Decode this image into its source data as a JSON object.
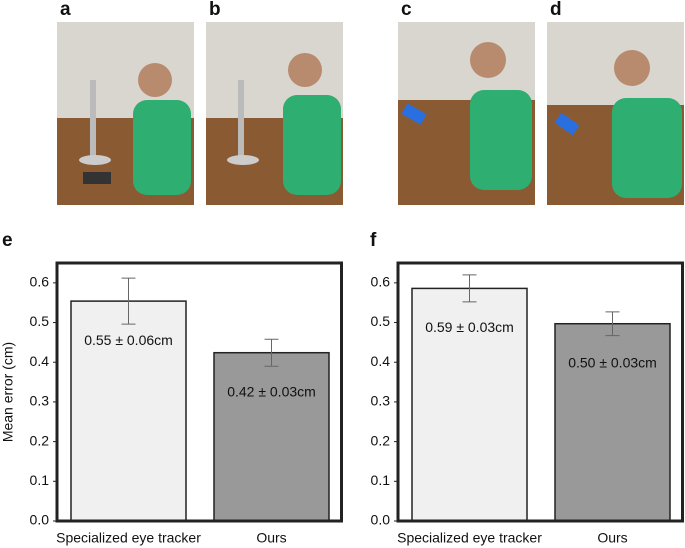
{
  "panels": {
    "labels": [
      "a",
      "b",
      "c",
      "d"
    ]
  },
  "chart_data": [
    {
      "type": "bar",
      "panel": "e",
      "ylabel": "Mean error (cm)",
      "categories": [
        "Specialized eye tracker",
        "Ours"
      ],
      "values": [
        0.554,
        0.424
      ],
      "errors": [
        0.058,
        0.034
      ],
      "value_labels": [
        "0.55 ± 0.06cm",
        "0.42 ± 0.03cm"
      ],
      "colors": [
        "#f0f0f0",
        "#999999"
      ],
      "ylim": [
        0,
        0.65
      ],
      "yticks": [
        {
          "value": 0,
          "label": "0.0"
        },
        0.1,
        0.2,
        0.3,
        0.4,
        0.5,
        0.6
      ]
    },
    {
      "type": "bar",
      "panel": "f",
      "categories": [
        "Specialized eye tracker",
        "Ours"
      ],
      "values": [
        0.586,
        0.497
      ],
      "errors": [
        0.034,
        0.03
      ],
      "value_labels": [
        "0.59 ± 0.03cm",
        "0.50 ± 0.03cm"
      ],
      "colors": [
        "#f0f0f0",
        "#999999"
      ],
      "ylim": [
        0,
        0.65
      ],
      "yticks": [
        {
          "value": 0,
          "label": "0.0"
        },
        0.1,
        0.2,
        0.3,
        0.4,
        0.5,
        0.6
      ]
    }
  ]
}
